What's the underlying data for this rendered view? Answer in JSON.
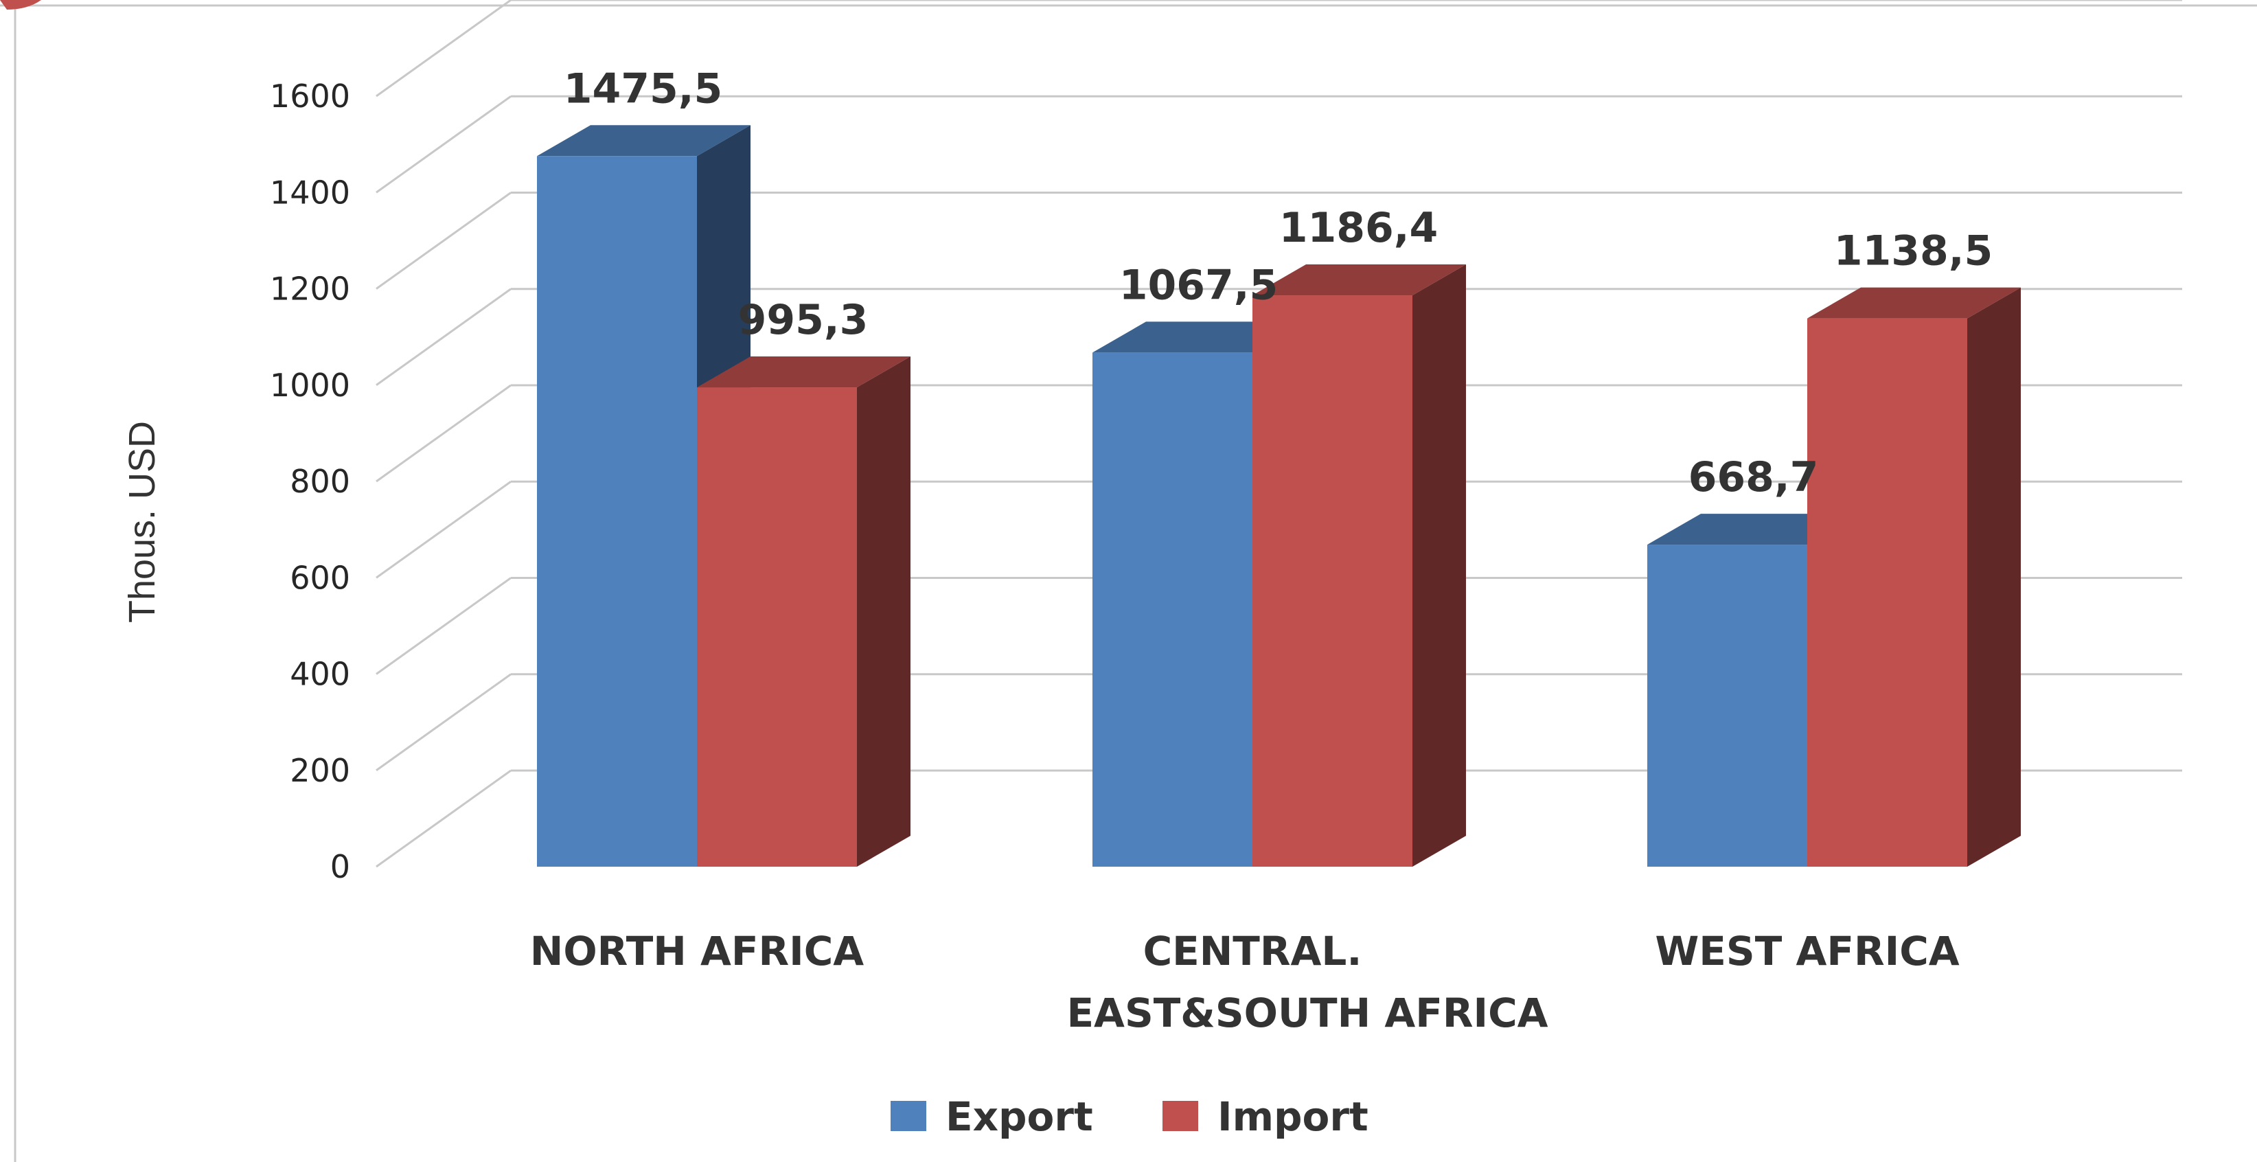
{
  "chart_data": {
    "type": "bar",
    "style": "3d-clustered-column",
    "title": "",
    "ylabel": "Thous. USD",
    "xlabel": "",
    "ylim": [
      0,
      1600
    ],
    "yticks": [
      "0",
      "200",
      "400",
      "600",
      "800",
      "1000",
      "1200",
      "1400",
      "1600"
    ],
    "categories": [
      [
        "NORTH AFRICA"
      ],
      [
        "CENTRAL.",
        "EAST&SOUTH AFRICA"
      ],
      [
        "WEST AFRICA"
      ]
    ],
    "series": [
      {
        "name": "Export",
        "color": "#4f81bd",
        "values": [
          1475.5,
          1067.5,
          668.7
        ],
        "labels": [
          "1475,5",
          "1067,5",
          "668,7"
        ]
      },
      {
        "name": "Import",
        "color": "#c0504d",
        "values": [
          995.3,
          1186.4,
          1138.5
        ],
        "labels": [
          "995,3",
          "1186,4",
          "1138,5"
        ]
      }
    ],
    "grid": true,
    "legend": "bottom"
  }
}
